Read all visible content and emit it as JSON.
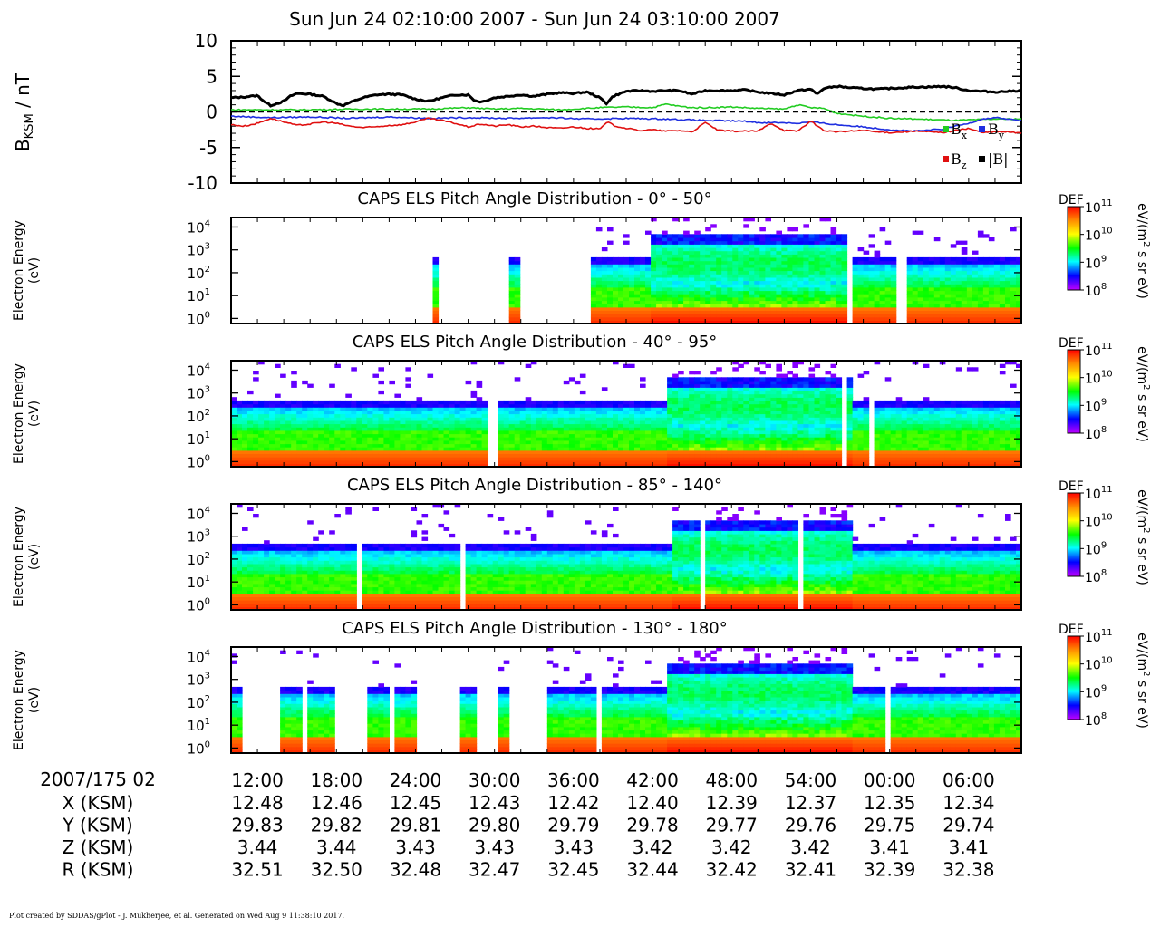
{
  "footer": "Plot created by SDDAS/gPlot - J. Mukherjee, et al.  Generated on Wed Aug 9 11:38:10 2017.",
  "colors": {
    "Bx": "#22cc22",
    "By": "#1f2fe0",
    "Bz": "#e01010",
    "Bmag": "#000000",
    "colormap": [
      "#c000ff",
      "#0000ff",
      "#00ffff",
      "#00ff00",
      "#ffff00",
      "#ff8800",
      "#ff0000"
    ]
  },
  "chart_data": [
    {
      "type": "line",
      "title": "Sun Jun 24 02:10:00 2007 - Sun Jun 24 03:10:00 2007",
      "ylabel_main": "B",
      "ylabel_sub": "KSM",
      "ylabel_rest": " / nT",
      "ylim": [
        -10,
        10
      ],
      "yticks": [
        "10",
        "5",
        "0",
        "-5",
        "-10"
      ],
      "yticks_values": [
        10,
        5,
        0,
        -5,
        -10
      ],
      "xlim_minutes": [
        0,
        60
      ],
      "zero_line": "dashed",
      "legend": [
        {
          "base": "B",
          "sub": "x",
          "color": "#22cc22"
        },
        {
          "base": "B",
          "sub": "y",
          "color": "#1f2fe0"
        },
        {
          "base": "B",
          "sub": "z",
          "color": "#e01010"
        },
        {
          "base": "|B|",
          "sub": "",
          "color": "#000000"
        }
      ],
      "series": [
        {
          "name": "|B|",
          "color": "#000000",
          "x": [
            0,
            1,
            2,
            2.5,
            3,
            4,
            4.5,
            5,
            6,
            7,
            8,
            8.5,
            9,
            10,
            11,
            12,
            13,
            14,
            15,
            16,
            17,
            18,
            18.5,
            19,
            20,
            21,
            22,
            23,
            24,
            25,
            26,
            27,
            28,
            28.5,
            29,
            30,
            31,
            32,
            33,
            34,
            35,
            36,
            37,
            38,
            39,
            40,
            41,
            42,
            43,
            44,
            44.5,
            45,
            46,
            47,
            48,
            49,
            50,
            51,
            52,
            53,
            54,
            55,
            56,
            57,
            58,
            59,
            60
          ],
          "y": [
            2.0,
            2.1,
            2.3,
            1.5,
            0.9,
            1.5,
            2.2,
            2.6,
            2.5,
            2.2,
            1.2,
            0.9,
            1.3,
            2.0,
            2.4,
            2.5,
            2.4,
            1.8,
            1.5,
            2.0,
            2.4,
            2.4,
            1.6,
            1.4,
            2.0,
            2.2,
            2.4,
            2.2,
            2.5,
            2.7,
            2.6,
            2.8,
            2.0,
            1.2,
            2.2,
            2.9,
            3.0,
            2.9,
            3.0,
            3.0,
            2.5,
            3.0,
            3.0,
            3.0,
            3.1,
            2.8,
            2.6,
            2.4,
            3.0,
            3.2,
            2.5,
            3.3,
            3.6,
            3.4,
            3.3,
            3.2,
            3.3,
            3.4,
            3.5,
            3.5,
            3.6,
            3.4,
            3.0,
            2.9,
            2.8,
            2.9,
            3.0
          ]
        },
        {
          "name": "Bx",
          "color": "#22cc22",
          "x": [
            0,
            5,
            10,
            15,
            18,
            20,
            22,
            25,
            28,
            30,
            32,
            33,
            34,
            35,
            36,
            38,
            40,
            42,
            43,
            44,
            45,
            46,
            48,
            50,
            52,
            55,
            58,
            60
          ],
          "y": [
            0.3,
            0.3,
            0.4,
            0.4,
            0.6,
            0.4,
            0.5,
            0.3,
            0.6,
            0.7,
            0.6,
            1.1,
            0.8,
            0.6,
            0.6,
            0.7,
            0.5,
            0.4,
            1.0,
            0.6,
            0.5,
            -0.2,
            -0.6,
            -0.9,
            -1.0,
            -1.2,
            -1.0,
            -1.0
          ]
        },
        {
          "name": "By",
          "color": "#1f2fe0",
          "x": [
            0,
            3,
            6,
            9,
            12,
            15,
            18,
            21,
            24,
            27,
            30,
            33,
            36,
            39,
            40,
            42,
            43,
            44,
            45,
            46,
            48,
            50,
            52,
            54,
            55,
            56,
            57,
            58,
            60
          ],
          "y": [
            -0.6,
            -0.8,
            -0.7,
            -0.9,
            -0.7,
            -0.9,
            -0.8,
            -0.9,
            -0.8,
            -1.0,
            -0.9,
            -1.0,
            -1.2,
            -1.3,
            -1.5,
            -1.5,
            -1.6,
            -1.4,
            -1.6,
            -1.8,
            -2.1,
            -2.5,
            -2.7,
            -2.4,
            -2.0,
            -1.6,
            -1.0,
            -0.8,
            -1.2
          ]
        },
        {
          "name": "Bz",
          "color": "#e01010",
          "x": [
            0,
            1,
            2,
            3,
            4,
            5,
            6,
            7,
            8,
            9,
            10,
            11,
            12,
            13,
            14,
            15,
            16,
            17,
            18,
            19,
            20,
            21,
            22,
            23,
            24,
            25,
            26,
            27,
            28,
            28.7,
            29,
            30,
            31,
            32,
            33,
            34,
            35,
            36,
            37,
            38,
            39,
            40,
            41,
            42,
            43,
            44,
            45,
            46,
            47,
            48,
            49,
            50,
            51,
            52,
            53,
            54,
            55,
            56,
            57,
            58,
            59,
            60
          ],
          "y": [
            -1.8,
            -2.0,
            -1.6,
            -0.9,
            -1.4,
            -1.9,
            -1.7,
            -1.4,
            -1.6,
            -2.0,
            -2.2,
            -2.1,
            -1.9,
            -1.8,
            -1.4,
            -0.9,
            -1.2,
            -1.6,
            -2.1,
            -1.7,
            -2.0,
            -1.8,
            -2.1,
            -2.0,
            -2.2,
            -2.3,
            -2.1,
            -2.3,
            -2.4,
            -1.3,
            -1.9,
            -2.3,
            -2.6,
            -2.5,
            -2.7,
            -2.6,
            -2.8,
            -1.5,
            -2.6,
            -2.7,
            -2.7,
            -2.7,
            -1.6,
            -2.6,
            -2.7,
            -1.3,
            -2.6,
            -2.8,
            -2.7,
            -2.6,
            -2.8,
            -2.9,
            -2.8,
            -2.7,
            -2.8,
            -2.9,
            -2.6,
            -2.3,
            -2.9,
            -2.8,
            -2.8,
            -3.0
          ]
        }
      ],
      "xticks_minor_count": 30
    },
    {
      "type": "heatmap",
      "title": "CAPS ELS Pitch Angle Distribution - 0° - 50°",
      "ylabel_lines": [
        "Electron Energy",
        "(eV)"
      ],
      "yticks_exp": [
        "0",
        "1",
        "2",
        "3",
        "4"
      ],
      "y_log_range_eV": [
        0.6,
        26000
      ],
      "colorbar": {
        "label": "DEF",
        "unit_base": "eV/(m",
        "unit_sup": "2",
        "unit_rest": " s sr eV)",
        "ticks_exp": [
          "11",
          "10",
          "9",
          "8"
        ],
        "range_exp": [
          8,
          11
        ]
      },
      "coverage_minutes": [
        [
          15.2,
          15.6
        ],
        [
          21.3,
          21.9
        ],
        [
          27.3,
          60
        ]
      ],
      "gaps_minutes": [
        [
          46.8,
          47.2
        ],
        [
          47.8,
          48.1
        ],
        [
          48.3,
          48.5
        ],
        [
          50.5,
          51.4
        ]
      ],
      "plasma_sheet_minutes": [
        32,
        47
      ],
      "lobe_peak_minutes": [
        38,
        46
      ],
      "xticks_minor_count": 30
    },
    {
      "type": "heatmap",
      "title": "CAPS ELS Pitch Angle Distribution - 40° - 95°",
      "ylabel_lines": [
        "Electron Energy",
        "(eV)"
      ],
      "yticks_exp": [
        "0",
        "1",
        "2",
        "3",
        "4"
      ],
      "y_log_range_eV": [
        0.6,
        26000
      ],
      "colorbar": {
        "label": "DEF",
        "unit_base": "eV/(m",
        "unit_sup": "2",
        "unit_rest": " s sr eV)",
        "ticks_exp": [
          "11",
          "10",
          "9",
          "8"
        ],
        "range_exp": [
          8,
          11
        ]
      },
      "coverage_minutes": [
        [
          0,
          60
        ]
      ],
      "gaps_minutes": [
        [
          4.1,
          4.2
        ],
        [
          7.8,
          7.9
        ],
        [
          12.3,
          12.4
        ],
        [
          17.4,
          17.5
        ],
        [
          19.6,
          19.7
        ],
        [
          20.0,
          20.1
        ],
        [
          28.6,
          28.7
        ],
        [
          36.0,
          36.1
        ],
        [
          39.7,
          39.8
        ],
        [
          41.6,
          41.7
        ],
        [
          44.3,
          44.4
        ],
        [
          46.5,
          46.6
        ],
        [
          48.1,
          48.2
        ],
        [
          48.6,
          48.7
        ]
      ],
      "plasma_sheet_minutes": [
        33,
        47
      ],
      "lobe_peak_minutes": [
        36,
        46
      ],
      "xticks_minor_count": 30
    },
    {
      "type": "heatmap",
      "title": "CAPS ELS Pitch Angle Distribution - 85° - 140°",
      "ylabel_lines": [
        "Electron Energy",
        "(eV)"
      ],
      "yticks_exp": [
        "0",
        "1",
        "2",
        "3",
        "4"
      ],
      "y_log_range_eV": [
        0.6,
        26000
      ],
      "colorbar": {
        "label": "DEF",
        "unit_base": "eV/(m",
        "unit_sup": "2",
        "unit_rest": " s sr eV)",
        "ticks_exp": [
          "11",
          "10",
          "9",
          "8"
        ],
        "range_exp": [
          8,
          11
        ]
      },
      "coverage_minutes": [
        [
          0,
          60
        ]
      ],
      "gaps_minutes": [
        [
          9.7,
          9.8
        ],
        [
          10.7,
          10.8
        ],
        [
          17.5,
          17.6
        ],
        [
          19.4,
          19.5
        ],
        [
          31.9,
          32.0
        ],
        [
          35.7,
          35.8
        ],
        [
          37.9,
          38.0
        ],
        [
          39.3,
          39.4
        ],
        [
          43.2,
          43.3
        ],
        [
          46.4,
          46.5
        ],
        [
          47.2,
          47.3
        ]
      ],
      "plasma_sheet_minutes": [
        33.5,
        47
      ],
      "lobe_peak_minutes": [
        36,
        46
      ],
      "xticks_minor_count": 30
    },
    {
      "type": "heatmap",
      "title": "CAPS ELS Pitch Angle Distribution - 130° - 180°",
      "ylabel_lines": [
        "Electron Energy",
        "(eV)"
      ],
      "yticks_exp": [
        "0",
        "1",
        "2",
        "3",
        "4"
      ],
      "y_log_range_eV": [
        0.6,
        26000
      ],
      "colorbar": {
        "label": "DEF",
        "unit_base": "eV/(m",
        "unit_sup": "2",
        "unit_rest": " s sr eV)",
        "ticks_exp": [
          "11",
          "10",
          "9",
          "8"
        ],
        "range_exp": [
          8,
          11
        ]
      },
      "coverage_minutes": [
        [
          0,
          1.0
        ],
        [
          3.6,
          5.4
        ],
        [
          6.0,
          7.7
        ],
        [
          10.2,
          12.0
        ],
        [
          12.6,
          14.1
        ],
        [
          17.2,
          18.8
        ],
        [
          20.2,
          21.2
        ],
        [
          24.0,
          27.7
        ],
        [
          28.2,
          60
        ]
      ],
      "gaps_minutes": [
        [
          27.2,
          27.3
        ],
        [
          34.8,
          34.9
        ],
        [
          39.7,
          39.8
        ],
        [
          41.3,
          41.4
        ],
        [
          44.1,
          44.2
        ],
        [
          49.8,
          49.9
        ],
        [
          50.3,
          50.4
        ],
        [
          54.6,
          54.7
        ]
      ],
      "plasma_sheet_minutes": [
        33,
        47
      ],
      "lobe_peak_minutes": [
        36,
        46
      ],
      "xticks_minor_count": 30
    }
  ],
  "time_axis": {
    "row_label": "2007/175 02",
    "tick_minutes": [
      2,
      8,
      14,
      20,
      26,
      32,
      38,
      44,
      50,
      56
    ],
    "tick_labels": [
      "12:00",
      "18:00",
      "24:00",
      "30:00",
      "36:00",
      "42:00",
      "48:00",
      "54:00",
      "00:00",
      "06:00"
    ]
  },
  "ephemeris": [
    {
      "label": "X (KSM)",
      "values": [
        "12.48",
        "12.46",
        "12.45",
        "12.43",
        "12.42",
        "12.40",
        "12.39",
        "12.37",
        "12.35",
        "12.34"
      ]
    },
    {
      "label": "Y (KSM)",
      "values": [
        "29.83",
        "29.82",
        "29.81",
        "29.80",
        "29.79",
        "29.78",
        "29.77",
        "29.76",
        "29.75",
        "29.74"
      ]
    },
    {
      "label": "Z (KSM)",
      "values": [
        "3.44",
        "3.44",
        "3.43",
        "3.43",
        "3.43",
        "3.42",
        "3.42",
        "3.42",
        "3.41",
        "3.41"
      ]
    },
    {
      "label": "R (KSM)",
      "values": [
        "32.51",
        "32.50",
        "32.48",
        "32.47",
        "32.45",
        "32.44",
        "32.42",
        "32.41",
        "32.39",
        "32.38"
      ]
    }
  ]
}
